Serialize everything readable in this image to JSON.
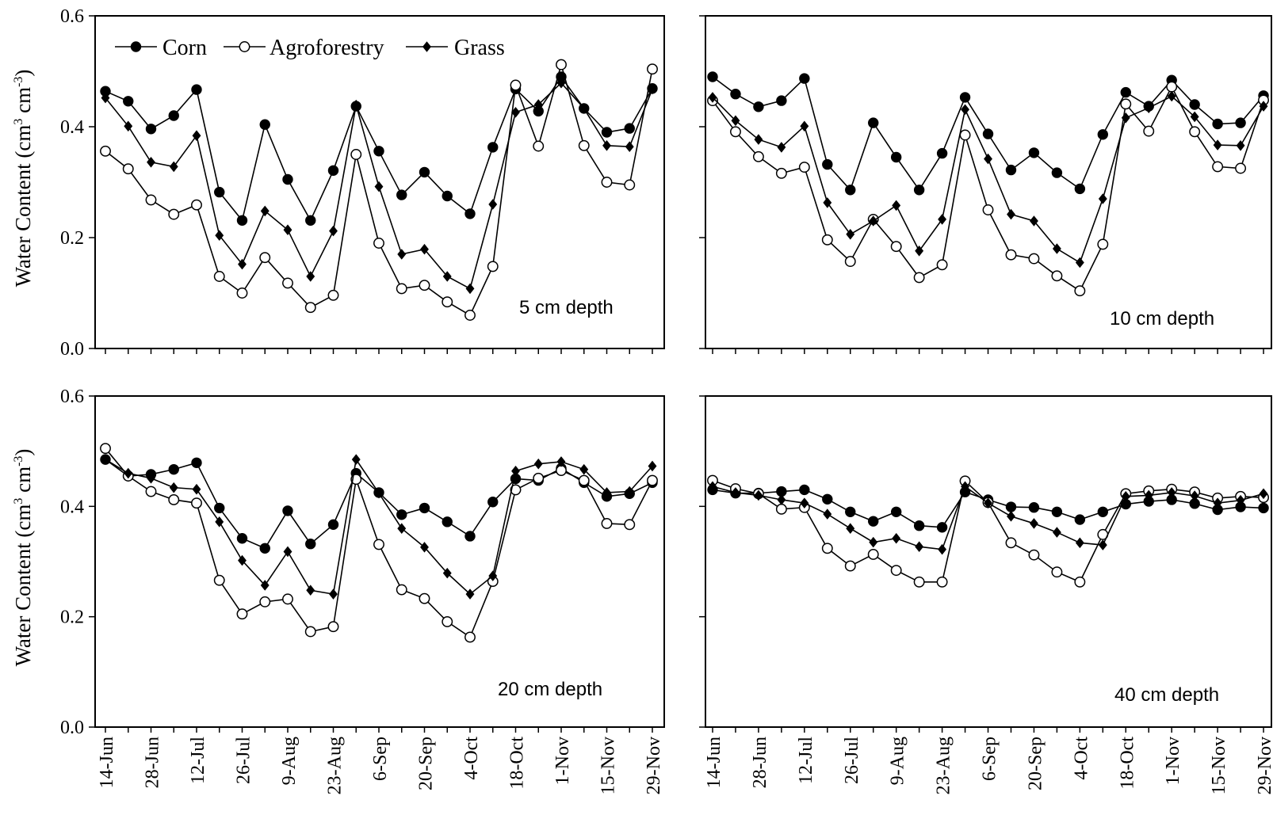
{
  "figure": {
    "ylabel_main": "Water Content (cm",
    "ylabel_sup1": "3",
    "ylabel_mid": " cm",
    "ylabel_sup2": "-3",
    "ylabel_end": ")"
  },
  "chart_data": [
    {
      "type": "line",
      "annotation": "5 cm depth",
      "ylim": [
        0,
        0.6
      ],
      "yticks": [
        "0.0",
        "0.2",
        "0.4",
        "0.6"
      ],
      "xtick_labels": [
        "14-Jun",
        "28-Jun",
        "12-Jul",
        "26-Jul",
        "9-Aug",
        "23-Aug",
        "6-Sep",
        "20-Sep",
        "4-Oct",
        "18-Oct",
        "1-Nov",
        "15-Nov",
        "29-Nov"
      ],
      "x_index": [
        0,
        1,
        2,
        3,
        4,
        5,
        6,
        7,
        8,
        9,
        10,
        11,
        12,
        13,
        14,
        15,
        16,
        17,
        18,
        19,
        20,
        21,
        22,
        23,
        24
      ],
      "series": [
        {
          "name": "Corn",
          "marker": "filled-circle",
          "values": [
            0.464,
            0.446,
            0.396,
            0.42,
            0.467,
            0.282,
            0.231,
            0.404,
            0.305,
            0.231,
            0.321,
            0.437,
            0.356,
            0.277,
            0.318,
            0.275,
            0.243,
            0.363,
            0.468,
            0.428,
            0.49,
            0.433,
            0.39,
            0.397,
            0.469
          ]
        },
        {
          "name": "Agroforestry",
          "marker": "open-circle",
          "values": [
            0.356,
            0.324,
            0.268,
            0.242,
            0.259,
            0.13,
            0.1,
            0.164,
            0.118,
            0.074,
            0.096,
            0.35,
            0.19,
            0.108,
            0.114,
            0.084,
            0.06,
            0.148,
            0.475,
            0.365,
            0.512,
            0.366,
            0.3,
            0.295,
            0.504
          ]
        },
        {
          "name": "Grass",
          "marker": "filled-diamond",
          "values": [
            0.452,
            0.401,
            0.336,
            0.328,
            0.384,
            0.204,
            0.152,
            0.248,
            0.214,
            0.13,
            0.212,
            0.439,
            0.292,
            0.17,
            0.179,
            0.13,
            0.108,
            0.26,
            0.426,
            0.44,
            0.479,
            0.433,
            0.366,
            0.364,
            0.468
          ]
        }
      ],
      "legend": "top-left"
    },
    {
      "type": "line",
      "annotation": "10 cm depth",
      "ylim": [
        0,
        0.6
      ],
      "xtick_labels": [
        "14-Jun",
        "28-Jun",
        "12-Jul",
        "26-Jul",
        "9-Aug",
        "23-Aug",
        "6-Sep",
        "20-Sep",
        "4-Oct",
        "18-Oct",
        "1-Nov",
        "15-Nov",
        "29-Nov"
      ],
      "x_index": [
        0,
        1,
        2,
        3,
        4,
        5,
        6,
        7,
        8,
        9,
        10,
        11,
        12,
        13,
        14,
        15,
        16,
        17,
        18,
        19,
        20,
        21,
        22,
        23,
        24
      ],
      "series": [
        {
          "name": "Corn",
          "marker": "filled-circle",
          "values": [
            0.49,
            0.459,
            0.436,
            0.447,
            0.487,
            0.332,
            0.286,
            0.407,
            0.345,
            0.286,
            0.352,
            0.453,
            0.387,
            0.322,
            0.353,
            0.317,
            0.288,
            0.386,
            0.462,
            0.437,
            0.484,
            0.44,
            0.405,
            0.407,
            0.456
          ]
        },
        {
          "name": "Agroforestry",
          "marker": "open-circle",
          "values": [
            0.447,
            0.391,
            0.346,
            0.316,
            0.327,
            0.196,
            0.157,
            0.233,
            0.184,
            0.128,
            0.151,
            0.385,
            0.25,
            0.169,
            0.162,
            0.131,
            0.104,
            0.188,
            0.441,
            0.392,
            0.472,
            0.391,
            0.328,
            0.325,
            0.448
          ]
        },
        {
          "name": "Grass",
          "marker": "filled-diamond",
          "values": [
            0.453,
            0.411,
            0.377,
            0.363,
            0.401,
            0.263,
            0.206,
            0.23,
            0.258,
            0.176,
            0.233,
            0.431,
            0.342,
            0.242,
            0.23,
            0.18,
            0.155,
            0.27,
            0.416,
            0.434,
            0.455,
            0.418,
            0.367,
            0.366,
            0.437
          ]
        }
      ]
    },
    {
      "type": "line",
      "annotation": "20 cm depth",
      "ylim": [
        0,
        0.6
      ],
      "yticks": [
        "0.0",
        "0.2",
        "0.4",
        "0.6"
      ],
      "xtick_labels": [
        "14-Jun",
        "28-Jun",
        "12-Jul",
        "26-Jul",
        "9-Aug",
        "23-Aug",
        "6-Sep",
        "20-Sep",
        "4-Oct",
        "18-Oct",
        "1-Nov",
        "15-Nov",
        "29-Nov"
      ],
      "x_index": [
        0,
        1,
        2,
        3,
        4,
        5,
        6,
        7,
        8,
        9,
        10,
        11,
        12,
        13,
        14,
        15,
        16,
        17,
        18,
        19,
        20,
        21,
        22,
        23,
        24
      ],
      "series": [
        {
          "name": "Corn",
          "marker": "filled-circle",
          "values": [
            0.485,
            0.455,
            0.458,
            0.467,
            0.479,
            0.397,
            0.342,
            0.324,
            0.392,
            0.332,
            0.367,
            0.46,
            0.425,
            0.385,
            0.397,
            0.372,
            0.346,
            0.408,
            0.45,
            0.447,
            0.469,
            0.443,
            0.418,
            0.423,
            0.443
          ]
        },
        {
          "name": "Agroforestry",
          "marker": "open-circle",
          "values": [
            0.505,
            0.455,
            0.427,
            0.412,
            0.406,
            0.266,
            0.205,
            0.227,
            0.232,
            0.173,
            0.182,
            0.449,
            0.331,
            0.249,
            0.233,
            0.191,
            0.163,
            0.264,
            0.43,
            0.451,
            0.465,
            0.447,
            0.369,
            0.367,
            0.447
          ]
        },
        {
          "name": "Grass",
          "marker": "filled-diamond",
          "values": [
            0.485,
            0.46,
            0.451,
            0.434,
            0.431,
            0.372,
            0.302,
            0.257,
            0.318,
            0.248,
            0.241,
            0.485,
            0.424,
            0.36,
            0.326,
            0.279,
            0.241,
            0.274,
            0.464,
            0.477,
            0.481,
            0.467,
            0.425,
            0.427,
            0.473
          ]
        }
      ]
    },
    {
      "type": "line",
      "annotation": "40 cm depth",
      "ylim": [
        0,
        0.6
      ],
      "xtick_labels": [
        "14-Jun",
        "28-Jun",
        "12-Jul",
        "26-Jul",
        "9-Aug",
        "23-Aug",
        "6-Sep",
        "20-Sep",
        "4-Oct",
        "18-Oct",
        "1-Nov",
        "15-Nov",
        "29-Nov"
      ],
      "x_index": [
        0,
        1,
        2,
        3,
        4,
        5,
        6,
        7,
        8,
        9,
        10,
        11,
        12,
        13,
        14,
        15,
        16,
        17,
        18,
        19,
        20,
        21,
        22,
        23,
        24
      ],
      "series": [
        {
          "name": "Corn",
          "marker": "filled-circle",
          "values": [
            0.43,
            0.424,
            0.424,
            0.427,
            0.43,
            0.413,
            0.39,
            0.373,
            0.39,
            0.365,
            0.362,
            0.426,
            0.412,
            0.399,
            0.398,
            0.39,
            0.376,
            0.39,
            0.404,
            0.409,
            0.412,
            0.405,
            0.394,
            0.399,
            0.397
          ]
        },
        {
          "name": "Agroforestry",
          "marker": "open-circle",
          "values": [
            0.447,
            0.432,
            0.423,
            0.395,
            0.398,
            0.324,
            0.292,
            0.313,
            0.284,
            0.263,
            0.263,
            0.446,
            0.407,
            0.334,
            0.312,
            0.281,
            0.263,
            0.349,
            0.423,
            0.428,
            0.431,
            0.426,
            0.415,
            0.418,
            0.416
          ]
        },
        {
          "name": "Grass",
          "marker": "filled-diamond",
          "values": [
            0.436,
            0.425,
            0.42,
            0.412,
            0.406,
            0.386,
            0.36,
            0.335,
            0.342,
            0.327,
            0.322,
            0.436,
            0.406,
            0.382,
            0.369,
            0.353,
            0.334,
            0.33,
            0.418,
            0.42,
            0.425,
            0.419,
            0.406,
            0.411,
            0.423
          ]
        }
      ]
    }
  ]
}
